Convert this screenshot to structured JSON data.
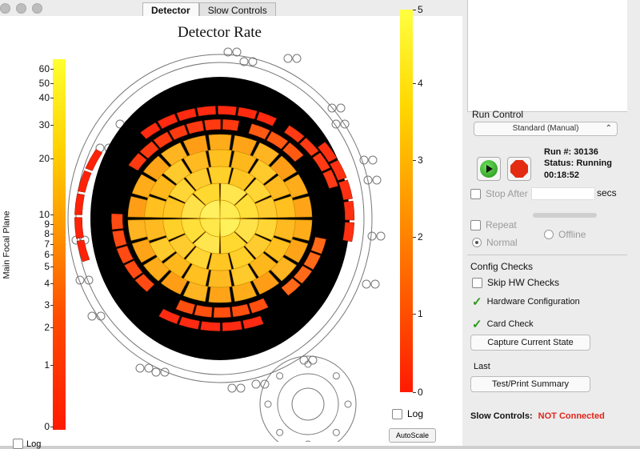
{
  "tabs": [
    {
      "label": "Detector",
      "active": true
    },
    {
      "label": "Slow Controls",
      "active": false
    }
  ],
  "plot": {
    "title": "Detector Rate",
    "left_scale": {
      "axis_label": "Main Focal Plane",
      "ticks": [
        "60",
        "50",
        "40",
        "30",
        "20",
        "10",
        "9",
        "8",
        "7",
        "6",
        "5",
        "4",
        "3",
        "2",
        "1",
        "0"
      ]
    },
    "right_scale": {
      "ticks": [
        "5",
        "4",
        "3",
        "2",
        "1",
        "0"
      ]
    },
    "log_label": "Log",
    "log_checked": false,
    "autoscale_label": "AutoScale",
    "bottom_log_label": "Log"
  },
  "run_control": {
    "title": "Run Control",
    "mode": "Standard (Manual)",
    "run_number_label": "Run #:",
    "run_number": "30136",
    "status_label": "Status:",
    "status": "Running",
    "elapsed": "00:18:52",
    "stop_after_label": "Stop After",
    "secs_label": "secs",
    "repeat_label": "Repeat",
    "normal_label": "Normal",
    "offline_label": "Offline"
  },
  "config_checks": {
    "title": "Config Checks",
    "skip_label": "Skip HW Checks",
    "hw_config_label": "Hardware Configuration",
    "card_check_label": "Card Check",
    "capture_button": "Capture Current State",
    "last_label": "Last",
    "summary_button": "Test/Print Summary"
  },
  "slow_controls": {
    "label": "Slow Controls:",
    "status": "NOT Connected",
    "status_color": "#e2231a"
  },
  "colors": {
    "accent_green": "#2b9a1a",
    "detector_background": "#000000",
    "scale_low": "#ff1a00",
    "scale_high": "#ffff30"
  }
}
